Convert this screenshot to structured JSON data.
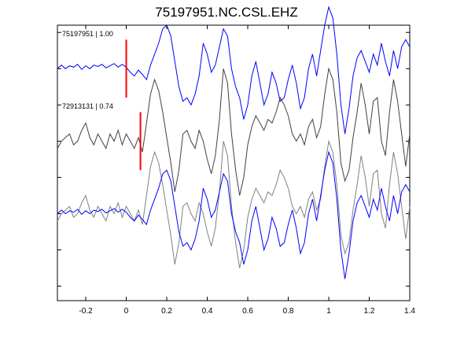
{
  "chart_data": {
    "type": "line",
    "title": "75197951.NC.CSL.EHZ",
    "xlabel": "",
    "ylabel": "",
    "xlim": [
      -0.34,
      1.4
    ],
    "xticks": [
      -0.2,
      0,
      0.2,
      0.4,
      0.6,
      0.8,
      1,
      1.2,
      1.4
    ],
    "xtick_labels": [
      "-0.2",
      "0",
      "0.2",
      "0.4",
      "0.6",
      "0.8",
      "1",
      "1.2",
      "1.4"
    ],
    "ylim": [
      -3.2,
      0.6
    ],
    "grid": false,
    "colors": {
      "blue": "#0000ff",
      "gray": "#404040",
      "pick": "#ff0000"
    },
    "traces": [
      {
        "label": "75197951 | 1.00",
        "color": "#0000ff",
        "offset": 0,
        "pick_time": 0.0,
        "x": [
          -0.34,
          -0.32,
          -0.3,
          -0.28,
          -0.26,
          -0.24,
          -0.22,
          -0.2,
          -0.18,
          -0.16,
          -0.14,
          -0.12,
          -0.1,
          -0.08,
          -0.06,
          -0.04,
          -0.02,
          0.0,
          0.02,
          0.04,
          0.06,
          0.08,
          0.1,
          0.12,
          0.14,
          0.16,
          0.18,
          0.2,
          0.22,
          0.24,
          0.26,
          0.28,
          0.3,
          0.32,
          0.34,
          0.36,
          0.38,
          0.4,
          0.42,
          0.44,
          0.46,
          0.48,
          0.5,
          0.52,
          0.54,
          0.56,
          0.58,
          0.6,
          0.62,
          0.64,
          0.66,
          0.68,
          0.7,
          0.72,
          0.74,
          0.76,
          0.78,
          0.8,
          0.82,
          0.84,
          0.86,
          0.88,
          0.9,
          0.92,
          0.94,
          0.96,
          0.98,
          1.0,
          1.02,
          1.04,
          1.06,
          1.08,
          1.1,
          1.12,
          1.14,
          1.16,
          1.18,
          1.2,
          1.22,
          1.24,
          1.26,
          1.28,
          1.3,
          1.32,
          1.34,
          1.36,
          1.38,
          1.4
        ],
        "y": [
          0.0,
          0.05,
          0.0,
          0.04,
          0.02,
          0.06,
          -0.01,
          0.04,
          0.0,
          0.05,
          0.03,
          0.06,
          0.01,
          0.04,
          0.07,
          0.02,
          0.06,
          0.02,
          -0.05,
          -0.1,
          -0.02,
          -0.08,
          -0.15,
          0.05,
          0.2,
          0.35,
          0.55,
          0.6,
          0.45,
          0.1,
          -0.25,
          -0.45,
          -0.4,
          -0.5,
          -0.35,
          -0.1,
          0.35,
          0.2,
          -0.05,
          0.05,
          0.3,
          0.55,
          0.45,
          0.0,
          -0.25,
          -0.4,
          -0.7,
          -0.5,
          -0.1,
          0.1,
          -0.2,
          -0.5,
          -0.35,
          -0.05,
          -0.2,
          -0.45,
          -0.4,
          -0.15,
          0.05,
          -0.2,
          -0.55,
          -0.4,
          0.0,
          0.2,
          -0.1,
          0.25,
          0.6,
          0.85,
          0.7,
          0.2,
          -0.5,
          -0.9,
          -0.55,
          -0.1,
          0.15,
          0.25,
          0.1,
          -0.05,
          0.2,
          0.05,
          0.35,
          0.1,
          -0.1,
          0.25,
          0.0,
          0.3,
          0.4,
          0.3
        ]
      },
      {
        "label": "72913131 | 0.74",
        "color": "#404040",
        "offset": -1,
        "pick_time": 0.07,
        "x": [
          -0.34,
          -0.32,
          -0.3,
          -0.28,
          -0.26,
          -0.24,
          -0.22,
          -0.2,
          -0.18,
          -0.16,
          -0.14,
          -0.12,
          -0.1,
          -0.08,
          -0.06,
          -0.04,
          -0.02,
          0.0,
          0.02,
          0.04,
          0.06,
          0.08,
          0.1,
          0.12,
          0.14,
          0.16,
          0.18,
          0.2,
          0.22,
          0.24,
          0.26,
          0.28,
          0.3,
          0.32,
          0.34,
          0.36,
          0.38,
          0.4,
          0.42,
          0.44,
          0.46,
          0.48,
          0.5,
          0.52,
          0.54,
          0.56,
          0.58,
          0.6,
          0.62,
          0.64,
          0.66,
          0.68,
          0.7,
          0.72,
          0.74,
          0.76,
          0.78,
          0.8,
          0.82,
          0.84,
          0.86,
          0.88,
          0.9,
          0.92,
          0.94,
          0.96,
          0.98,
          1.0,
          1.02,
          1.04,
          1.06,
          1.08,
          1.1,
          1.12,
          1.14,
          1.16,
          1.18,
          1.2,
          1.22,
          1.24,
          1.26,
          1.28,
          1.3,
          1.32,
          1.34,
          1.36,
          1.38,
          1.4
        ],
        "y": [
          -0.1,
          0.0,
          0.05,
          0.1,
          -0.05,
          0.0,
          0.15,
          0.25,
          0.05,
          -0.05,
          0.1,
          0.0,
          -0.1,
          0.1,
          0.0,
          0.15,
          -0.05,
          0.1,
          0.0,
          -0.1,
          0.05,
          -0.15,
          0.25,
          0.65,
          0.85,
          0.7,
          0.4,
          0.05,
          -0.3,
          -0.7,
          -0.4,
          0.1,
          0.15,
          0.0,
          -0.1,
          0.15,
          0.0,
          -0.25,
          -0.45,
          -0.2,
          0.3,
          1.0,
          0.8,
          0.1,
          -0.4,
          -0.75,
          -0.5,
          -0.05,
          0.2,
          0.35,
          0.25,
          0.15,
          0.3,
          0.25,
          0.4,
          0.6,
          0.5,
          0.35,
          0.1,
          0.0,
          0.1,
          -0.05,
          0.2,
          0.3,
          0.05,
          0.2,
          0.65,
          1.0,
          0.85,
          0.4,
          -0.3,
          -0.55,
          -0.4,
          0.05,
          0.4,
          0.8,
          0.5,
          0.1,
          0.55,
          0.6,
          0.0,
          -0.2,
          0.4,
          0.85,
          0.55,
          0.1,
          -0.35,
          0.1
        ]
      }
    ]
  }
}
